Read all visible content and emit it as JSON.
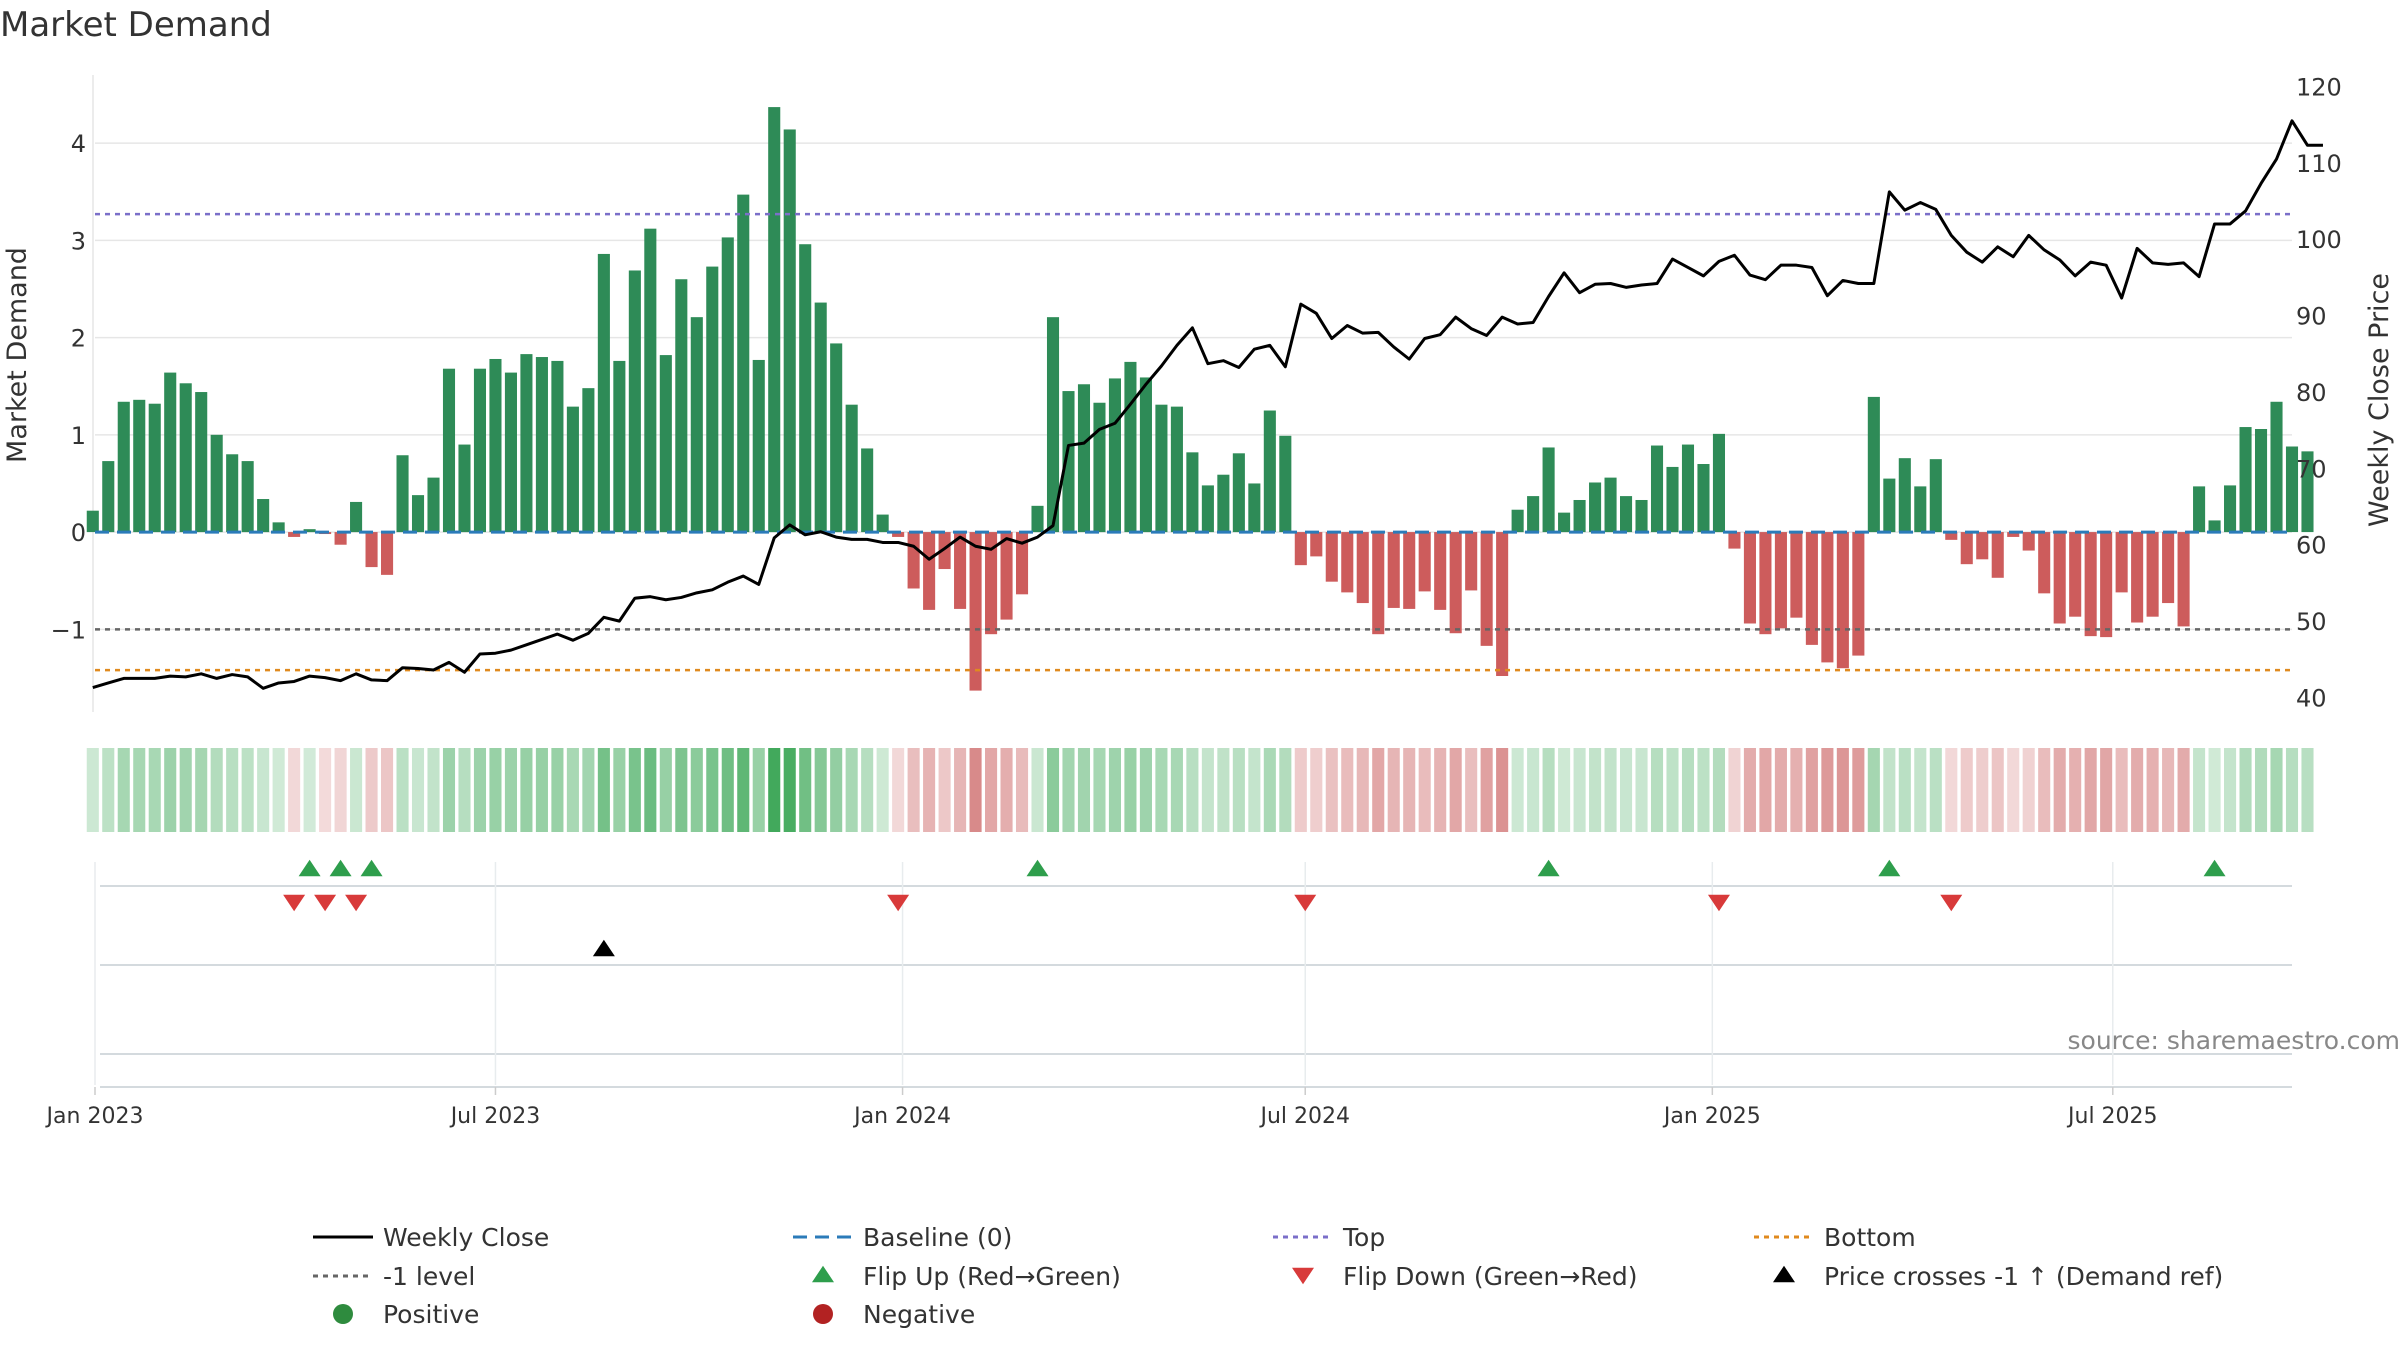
{
  "chart_data": {
    "type": "bar",
    "title": "Market Demand",
    "source": "source: sharemaestro.com",
    "left_axis": {
      "label": "Market Demand",
      "range": [
        -1.85,
        4.7
      ],
      "ticks": [
        -1,
        0,
        1,
        2,
        3,
        4
      ],
      "tick_labels": [
        "−1",
        "0",
        "1",
        "2",
        "3",
        "4"
      ]
    },
    "right_axis": {
      "label": "Weekly Close Price",
      "range": [
        38.1,
        121.5
      ],
      "ticks": [
        40,
        50,
        60,
        70,
        80,
        90,
        100,
        110,
        120
      ],
      "tick_labels": [
        "40",
        "50",
        "60",
        "70",
        "80",
        "90",
        "100",
        "110",
        "120"
      ]
    },
    "x_axis": {
      "start": "2023-01-01",
      "end": "2025-09-20",
      "ticks": [
        {
          "date": "2023-01-01",
          "label": "Jan 2023"
        },
        {
          "date": "2023-07-01",
          "label": "Jul 2023"
        },
        {
          "date": "2024-01-01",
          "label": "Jan 2024"
        },
        {
          "date": "2024-07-01",
          "label": "Jul 2024"
        },
        {
          "date": "2025-01-01",
          "label": "Jan 2025"
        },
        {
          "date": "2025-07-01",
          "label": "Jul 2025"
        }
      ]
    },
    "week_start": "2022-12-31",
    "demand": [
      0.22,
      0.73,
      1.34,
      1.36,
      1.32,
      1.64,
      1.53,
      1.44,
      1.0,
      0.8,
      0.73,
      0.34,
      0.1,
      -0.05,
      0.03,
      -0.02,
      -0.13,
      0.31,
      -0.36,
      -0.44,
      0.79,
      0.38,
      0.56,
      1.68,
      0.9,
      1.68,
      1.78,
      1.64,
      1.83,
      1.8,
      1.76,
      1.29,
      1.48,
      2.86,
      1.76,
      2.69,
      3.12,
      1.82,
      2.6,
      2.21,
      2.73,
      3.03,
      3.47,
      1.77,
      4.37,
      4.14,
      2.96,
      2.36,
      1.94,
      1.31,
      0.86,
      0.18,
      -0.05,
      -0.58,
      -0.8,
      -0.38,
      -0.79,
      -1.63,
      -1.05,
      -0.9,
      -0.64,
      0.27,
      2.21,
      1.45,
      1.52,
      1.33,
      1.58,
      1.75,
      1.59,
      1.31,
      1.29,
      0.82,
      0.48,
      0.59,
      0.81,
      0.5,
      1.25,
      0.99,
      -0.34,
      -0.25,
      -0.51,
      -0.62,
      -0.73,
      -1.05,
      -0.78,
      -0.79,
      -0.61,
      -0.8,
      -1.04,
      -0.6,
      -1.17,
      -1.48,
      0.23,
      0.37,
      0.87,
      0.2,
      0.33,
      0.51,
      0.56,
      0.37,
      0.33,
      0.89,
      0.67,
      0.9,
      0.7,
      1.01,
      -0.17,
      -0.94,
      -1.05,
      -0.99,
      -0.88,
      -1.16,
      -1.34,
      -1.4,
      -1.27,
      1.39,
      0.55,
      0.76,
      0.47,
      0.75,
      -0.08,
      -0.33,
      -0.28,
      -0.47,
      -0.05,
      -0.19,
      -0.63,
      -0.94,
      -0.87,
      -1.07,
      -1.08,
      -0.62,
      -0.93,
      -0.87,
      -0.73,
      -0.97,
      0.47,
      0.12,
      0.48,
      1.08,
      1.06,
      1.34,
      0.88,
      0.83
    ],
    "weekly_close": [
      41.3,
      41.9,
      42.5,
      42.5,
      42.5,
      42.8,
      42.7,
      43.1,
      42.5,
      43.0,
      42.7,
      41.2,
      41.9,
      42.1,
      42.8,
      42.6,
      42.2,
      43.1,
      42.3,
      42.2,
      43.9,
      43.8,
      43.6,
      44.6,
      43.3,
      45.7,
      45.8,
      46.2,
      46.9,
      47.6,
      48.3,
      47.5,
      48.4,
      50.5,
      50.0,
      53.0,
      53.2,
      52.8,
      53.1,
      53.7,
      54.1,
      55.1,
      55.9,
      54.8,
      60.9,
      62.6,
      61.3,
      61.7,
      61.0,
      60.7,
      60.7,
      60.3,
      60.3,
      59.8,
      58.1,
      59.5,
      61.0,
      59.8,
      59.4,
      60.8,
      60.2,
      61.0,
      62.5,
      73.0,
      73.3,
      75.1,
      75.9,
      78.4,
      81.0,
      83.4,
      86.1,
      88.4,
      83.7,
      84.1,
      83.2,
      85.6,
      86.1,
      83.3,
      91.5,
      90.3,
      87.0,
      88.7,
      87.7,
      87.8,
      85.9,
      84.3,
      87.0,
      87.5,
      89.8,
      88.3,
      87.4,
      89.8,
      88.9,
      89.1,
      92.5,
      95.6,
      93.0,
      94.1,
      94.2,
      93.7,
      94.0,
      94.2,
      97.4,
      96.3,
      95.2,
      97.1,
      97.9,
      95.3,
      94.7,
      96.6,
      96.6,
      96.3,
      92.6,
      94.6,
      94.2,
      94.2,
      106.2,
      103.8,
      104.8,
      103.9,
      100.5,
      98.3,
      97.0,
      99.0,
      97.7,
      100.5,
      98.6,
      97.3,
      95.2,
      97.0,
      96.6,
      92.3,
      98.8,
      96.9,
      96.7,
      96.9,
      95.1,
      102.0,
      102.0,
      103.7,
      107.3,
      110.5,
      115.5,
      112.3,
      112.3
    ],
    "strip_intensity": [
      0.22,
      0.73,
      1.34,
      1.36,
      1.32,
      1.64,
      1.53,
      1.44,
      1.0,
      0.8,
      0.73,
      0.34,
      0.1,
      -0.05,
      0.03,
      -0.02,
      -0.13,
      0.31,
      -0.36,
      -0.44,
      0.79,
      0.38,
      0.56,
      1.68,
      0.9,
      1.68,
      1.78,
      1.64,
      1.83,
      1.8,
      1.76,
      1.29,
      1.48,
      2.86,
      1.76,
      2.69,
      3.12,
      1.82,
      2.6,
      2.21,
      2.73,
      3.03,
      3.47,
      1.77,
      4.37,
      4.14,
      2.96,
      2.36,
      1.94,
      1.31,
      0.86,
      0.18,
      -0.05,
      -0.58,
      -0.8,
      -0.38,
      -0.79,
      -1.63,
      -1.05,
      -0.9,
      -0.64,
      0.27,
      2.21,
      1.45,
      1.52,
      1.33,
      1.58,
      1.75,
      1.59,
      1.31,
      1.29,
      0.82,
      0.48,
      0.59,
      0.81,
      0.5,
      1.25,
      0.99,
      -0.34,
      -0.25,
      -0.51,
      -0.62,
      -0.73,
      -1.05,
      -0.78,
      -0.79,
      -0.61,
      -0.8,
      -1.04,
      -0.6,
      -1.17,
      -1.48,
      0.23,
      0.37,
      0.87,
      0.2,
      0.33,
      0.51,
      0.56,
      0.37,
      0.33,
      0.89,
      0.67,
      0.9,
      0.7,
      1.01,
      -0.17,
      -0.94,
      -1.05,
      -0.99,
      -0.88,
      -1.16,
      -1.34,
      -1.4,
      -1.27,
      1.39,
      0.55,
      0.76,
      0.47,
      0.75,
      -0.08,
      -0.33,
      -0.28,
      -0.47,
      -0.05,
      -0.19,
      -0.63,
      -0.94,
      -0.87,
      -1.07,
      -1.08,
      -0.62,
      -0.93,
      -0.87,
      -0.73,
      -0.97,
      0.47,
      0.12,
      0.48,
      1.08,
      1.06,
      1.34,
      0.88,
      0.83
    ],
    "reference_lines": [
      {
        "name": "Top",
        "value": 3.27,
        "color": "#7b6fc9",
        "style": "dotted"
      },
      {
        "name": "-1 level",
        "value": -1.0,
        "color": "#666666",
        "style": "dotted"
      },
      {
        "name": "Bottom",
        "value": -1.42,
        "color": "#e08a1e",
        "style": "dotted"
      },
      {
        "name": "Baseline (0)",
        "value": 0,
        "color": "#2b7bb9",
        "style": "dashed"
      }
    ],
    "flip_up_dates": [
      "2023-04-08",
      "2023-04-22",
      "2023-05-06",
      "2024-03-02",
      "2024-10-19",
      "2025-03-22",
      "2025-08-16"
    ],
    "flip_down_dates": [
      "2023-04-01",
      "2023-04-15",
      "2023-04-29",
      "2023-12-30",
      "2024-07-01",
      "2025-01-04",
      "2025-04-19"
    ],
    "price_cross_dates": [
      "2023-08-19"
    ],
    "legend": [
      {
        "label": "Weekly Close",
        "marker": "line",
        "color": "#000000"
      },
      {
        "label": "Baseline (0)",
        "marker": "dashed",
        "color": "#2b7bb9"
      },
      {
        "label": "Top",
        "marker": "dotted",
        "color": "#7b6fc9"
      },
      {
        "label": "Bottom",
        "marker": "dotted",
        "color": "#e08a1e"
      },
      {
        "label": "-1 level",
        "marker": "dotted",
        "color": "#666666"
      },
      {
        "label": "Flip Up (Red→Green)",
        "marker": "triangle-up",
        "color": "#2e9e4c"
      },
      {
        "label": "Flip Down (Green→Red)",
        "marker": "triangle-down",
        "color": "#d83a3a"
      },
      {
        "label": "Price crosses -1 ↑ (Demand ref)",
        "marker": "triangle-up",
        "color": "#000000"
      },
      {
        "label": "Positive",
        "marker": "circle",
        "color": "#2e8b3e"
      },
      {
        "label": "Negative",
        "marker": "circle",
        "color": "#b22222"
      }
    ],
    "colors": {
      "positive_bar": "#2e8b57",
      "negative_bar": "#cd5c5c",
      "strip_positive": "#3aa655",
      "strip_negative": "#c95d5d",
      "price_line": "#000000",
      "grid": "#e6e6e6",
      "axis_text": "#333333"
    }
  }
}
